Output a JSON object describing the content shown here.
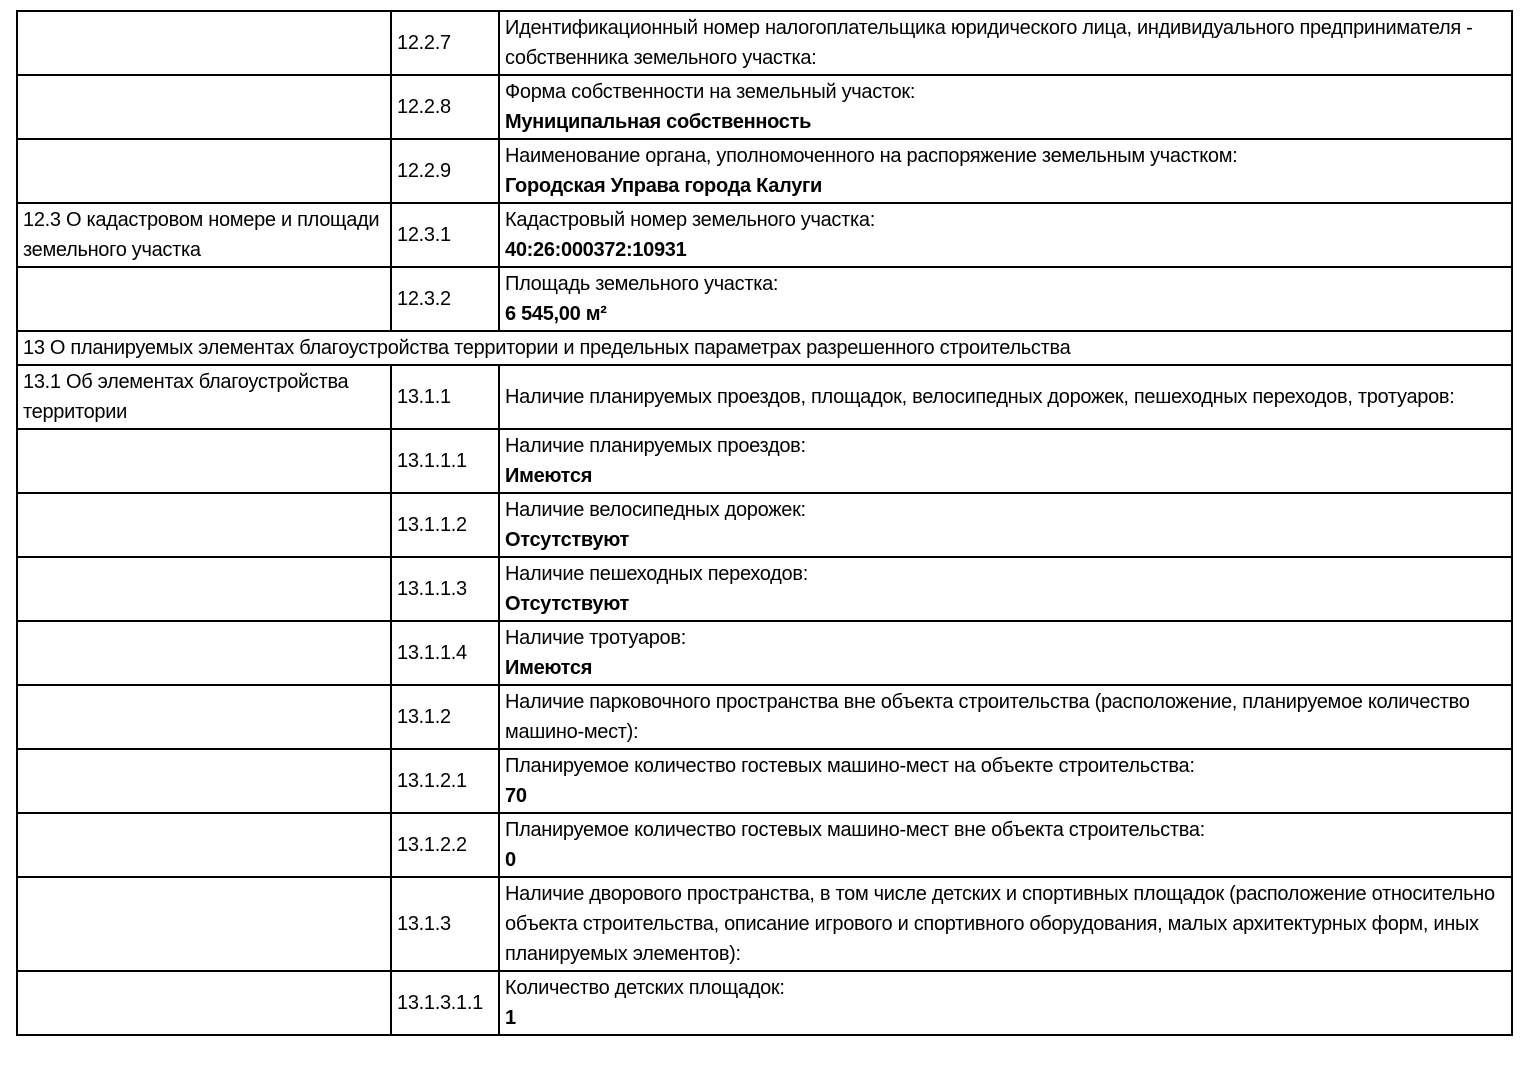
{
  "colors": {
    "text": "#000000",
    "border": "#000000",
    "background": "#ffffff"
  },
  "section13": {
    "title": "13 О планируемых элементах благоустройства территории и предельных параметрах разрешенного строительства"
  },
  "rows": [
    {
      "num": "12.2.7",
      "label": "Идентификационный номер налогоплательщика юридического лица, индивидуального предпринимателя - собственника земельного участка:"
    },
    {
      "num": "12.2.8",
      "label": "Форма собственности на земельный участок:",
      "value": "Муниципальная собственность"
    },
    {
      "num": "12.2.9",
      "label": "Наименование органа, уполномоченного на распоряжение земельным участком:",
      "value": "Городская Управа города Калуги"
    },
    {
      "section": "12.3 О кадастровом номере и площади земельного участка",
      "num": "12.3.1",
      "label": "Кадастровый номер земельного участка:",
      "value": "40:26:000372:10931"
    },
    {
      "num": "12.3.2",
      "label": "Площадь земельного участка:",
      "value": "6 545,00 м²"
    },
    {
      "section": "13.1 Об элементах благоустройства территории",
      "num": "13.1.1",
      "label": "Наличие планируемых проездов, площадок, велосипедных дорожек, пешеходных переходов, тротуаров:"
    },
    {
      "num": "13.1.1.1",
      "label": "Наличие планируемых проездов:",
      "value": "Имеются"
    },
    {
      "num": "13.1.1.2",
      "label": "Наличие велосипедных дорожек:",
      "value": "Отсутствуют"
    },
    {
      "num": "13.1.1.3",
      "label": "Наличие пешеходных переходов:",
      "value": "Отсутствуют"
    },
    {
      "num": "13.1.1.4",
      "label": "Наличие тротуаров:",
      "value": "Имеются"
    },
    {
      "num": "13.1.2",
      "label": "Наличие парковочного пространства вне объекта строительства (расположение, планируемое количество машино-мест):"
    },
    {
      "num": "13.1.2.1",
      "label": "Планируемое количество гостевых машино-мест на объекте строительства:",
      "value": "70"
    },
    {
      "num": "13.1.2.2",
      "label": "Планируемое количество гостевых машино-мест вне объекта строительства:",
      "value": "0"
    },
    {
      "num": "13.1.3",
      "label": "Наличие дворового пространства, в том числе детских и спортивных площадок (расположение относительно объекта строительства, описание игрового и спортивного оборудования, малых архитектурных форм, иных планируемых элементов):"
    },
    {
      "num": "13.1.3.1.1",
      "label": "Количество детских площадок:",
      "value": "1"
    }
  ]
}
